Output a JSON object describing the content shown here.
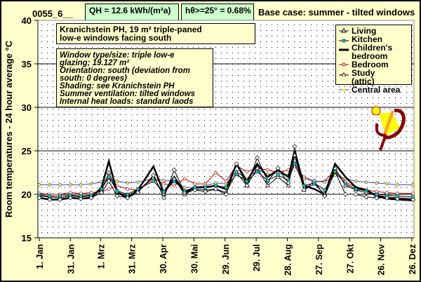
{
  "header": {
    "id": "0055_6__",
    "qh_label": "QH =",
    "qh_value": "12.6 kWh/(m²a)",
    "h_label": "hθ>=25° =",
    "h_value": "0.68%",
    "title": "Base case: summer - tilted windows"
  },
  "notes": {
    "title_lines": [
      "Kranichstein PH, 19 m² triple-paned",
      "low-e windows facing south"
    ],
    "detail_lines": [
      "Window type/size: triple low-e",
      "glazing; 19.127 m²",
      "Orientation: south (deviation from",
      "south: 0 degrees)",
      "Shading: see Kranichstein PH",
      "Summer ventilation: tilted windows",
      "Internal heat loads: standard laods"
    ]
  },
  "colors": {
    "background": "#ffffcc",
    "box_green": "#ccffcc",
    "living": "#000000",
    "kitchen": "#00cccc",
    "children": "#000000",
    "bedroom": "#aa0000",
    "study": "#ffffff",
    "central": "#4444cc",
    "central_marker": "#ffff00"
  },
  "chart_data": {
    "type": "line",
    "title": "Base case: summer - tilted windows",
    "xlabel": "",
    "ylabel": "Room temperatures - 24 hour average °C",
    "ylim": [
      15,
      40
    ],
    "yticks": [
      15,
      20,
      25,
      30,
      35,
      40
    ],
    "xlim": [
      0,
      365
    ],
    "xtick_days": [
      0,
      30,
      59,
      89,
      119,
      149,
      179,
      209,
      239,
      269,
      299,
      329,
      359
    ],
    "xtick_labels": [
      "1. Jan",
      "31. Jan",
      "1. Mrz",
      "31. Mrz",
      "30. Apr",
      "30. Mai",
      "29. Jun",
      "29. Jul",
      "28. Aug",
      "27. Sep",
      "27. Okt",
      "26. Nov",
      "26. Dez"
    ],
    "grid": "horizontal at 20, 25, 30, 35",
    "legend": "top-right",
    "x": [
      0,
      10,
      20,
      30,
      40,
      50,
      60,
      67,
      75,
      85,
      95,
      110,
      120,
      130,
      140,
      150,
      160,
      170,
      180,
      190,
      200,
      210,
      220,
      230,
      240,
      246,
      255,
      265,
      275,
      285,
      295,
      305,
      315,
      325,
      335,
      345,
      360
    ],
    "series": [
      {
        "name": "Living",
        "values": [
          19.8,
          19.7,
          19.6,
          19.8,
          19.7,
          19.8,
          20.5,
          22.5,
          20.3,
          19.8,
          20.4,
          22.0,
          20.0,
          21.8,
          20.0,
          20.6,
          20.5,
          20.6,
          20.2,
          22.5,
          21.0,
          23.0,
          21.0,
          22.0,
          21.0,
          24.5,
          20.5,
          21.2,
          20.0,
          23.0,
          21.0,
          20.5,
          20.2,
          19.9,
          19.7,
          19.6,
          19.5
        ]
      },
      {
        "name": "Kitchen",
        "values": [
          19.9,
          19.8,
          19.8,
          19.9,
          19.8,
          19.9,
          20.6,
          22.0,
          20.4,
          20.0,
          20.6,
          21.5,
          20.3,
          21.5,
          20.4,
          20.8,
          20.8,
          21.0,
          20.8,
          22.3,
          21.5,
          22.6,
          21.6,
          22.2,
          21.6,
          23.5,
          21.0,
          21.3,
          20.5,
          22.6,
          21.2,
          20.6,
          20.4,
          20.0,
          19.9,
          19.8,
          19.7
        ]
      },
      {
        "name": "Children's bedroom",
        "values": [
          19.6,
          19.4,
          19.4,
          19.6,
          19.5,
          19.6,
          20.8,
          23.8,
          20.2,
          19.6,
          20.5,
          23.2,
          20.2,
          22.0,
          20.2,
          20.8,
          20.8,
          21.0,
          20.6,
          23.5,
          21.5,
          23.5,
          22.0,
          22.8,
          22.0,
          25.0,
          21.0,
          20.6,
          20.0,
          23.5,
          22.0,
          20.8,
          20.5,
          19.8,
          19.5,
          19.4,
          19.3
        ]
      },
      {
        "name": "Bedroom",
        "values": [
          20.1,
          20.0,
          20.0,
          20.2,
          20.1,
          20.2,
          20.3,
          20.6,
          21.0,
          20.6,
          20.5,
          21.8,
          21.2,
          21.0,
          21.8,
          21.2,
          21.2,
          22.5,
          21.5,
          23.3,
          22.6,
          23.0,
          22.8,
          22.5,
          22.8,
          23.2,
          22.0,
          21.5,
          21.5,
          22.8,
          21.4,
          20.8,
          20.5,
          20.3,
          20.2,
          20.1,
          20.1
        ]
      },
      {
        "name": "Study (attic)",
        "values": [
          19.6,
          19.4,
          19.4,
          19.6,
          19.5,
          19.6,
          20.2,
          21.5,
          19.8,
          19.6,
          20.2,
          22.2,
          19.6,
          22.8,
          20.2,
          20.5,
          20.3,
          20.6,
          20.0,
          23.5,
          21.0,
          24.2,
          21.5,
          23.0,
          21.3,
          25.5,
          20.5,
          21.5,
          19.8,
          22.6,
          20.0,
          20.0,
          19.7,
          19.6,
          19.6,
          19.5,
          19.4
        ]
      },
      {
        "name": "Central area",
        "values": [
          21.1,
          21.1,
          21.1,
          21.1,
          21.1,
          21.2,
          21.4,
          21.8,
          21.5,
          21.3,
          21.4,
          21.8,
          21.6,
          21.5,
          20.8,
          20.8,
          21.0,
          21.3,
          21.2,
          22.6,
          21.8,
          22.8,
          22.3,
          22.4,
          22.2,
          23.6,
          21.8,
          21.5,
          21.4,
          22.2,
          21.8,
          21.5,
          21.4,
          21.3,
          21.2,
          21.1,
          21.1
        ]
      }
    ]
  }
}
